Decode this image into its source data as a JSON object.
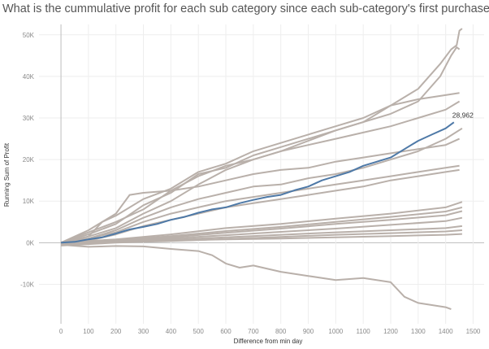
{
  "chart_data": {
    "type": "line",
    "title": "What is the cummulative profit for each sub category since each sub-category's first purchase?",
    "xlabel": "Difference from min day",
    "ylabel": "Running Sum of Profit",
    "xlim": [
      -80,
      1540
    ],
    "ylim": [
      -19500,
      52500
    ],
    "x_ticks": [
      0,
      100,
      200,
      300,
      400,
      500,
      600,
      700,
      800,
      900,
      1000,
      1100,
      1200,
      1300,
      1400,
      1500
    ],
    "y_ticks": [
      -10000,
      0,
      10000,
      20000,
      30000,
      40000,
      50000
    ],
    "y_tick_labels": [
      "-10K",
      "0K",
      "10K",
      "20K",
      "30K",
      "40K",
      "50K"
    ],
    "grid": true,
    "colors": {
      "background_series": "#b9b0aa",
      "highlight_series": "#4e79a7"
    },
    "end_label": "28,962",
    "series": [
      {
        "highlight": false,
        "x": [
          0,
          100,
          200,
          300,
          400,
          500,
          600,
          700,
          800,
          900,
          1000,
          1100,
          1200,
          1300,
          1380,
          1420,
          1440,
          1450,
          1460
        ],
        "values": [
          0,
          2000,
          4500,
          9000,
          12000,
          16500,
          18000,
          21000,
          23000,
          25000,
          27000,
          29000,
          33000,
          37000,
          43000,
          46500,
          47500,
          51000,
          51500
        ]
      },
      {
        "highlight": false,
        "x": [
          0,
          100,
          200,
          300,
          400,
          500,
          600,
          700,
          800,
          900,
          1000,
          1100,
          1200,
          1300,
          1380,
          1420,
          1440,
          1450
        ],
        "values": [
          0,
          1500,
          3500,
          7000,
          10000,
          14000,
          17500,
          20000,
          22000,
          24500,
          27000,
          29000,
          31000,
          34000,
          40000,
          45000,
          47000,
          46500
        ]
      },
      {
        "highlight": false,
        "x": [
          0,
          100,
          150,
          200,
          300,
          400,
          500,
          600,
          700,
          800,
          900,
          1000,
          1100,
          1200,
          1300,
          1400,
          1450
        ],
        "values": [
          0,
          1500,
          5000,
          6500,
          10500,
          13000,
          17000,
          19000,
          22000,
          24000,
          26000,
          28000,
          30000,
          33000,
          34500,
          35500,
          36000
        ]
      },
      {
        "highlight": false,
        "x": [
          0,
          100,
          200,
          300,
          400,
          500,
          600,
          700,
          800,
          900,
          1000,
          1100,
          1200,
          1300,
          1400,
          1450
        ],
        "values": [
          0,
          2500,
          5000,
          8000,
          12500,
          16000,
          18500,
          20000,
          22000,
          23500,
          25000,
          26500,
          28000,
          30000,
          32000,
          34000
        ]
      },
      {
        "highlight": true,
        "x": [
          0,
          50,
          100,
          150,
          200,
          250,
          300,
          350,
          400,
          450,
          500,
          550,
          600,
          650,
          700,
          750,
          800,
          850,
          900,
          950,
          1000,
          1050,
          1100,
          1150,
          1200,
          1250,
          1300,
          1350,
          1400,
          1430
        ],
        "values": [
          0,
          200,
          800,
          1300,
          2200,
          3200,
          3800,
          4500,
          5500,
          6200,
          7200,
          8000,
          8500,
          9500,
          10300,
          11000,
          11500,
          12600,
          13500,
          15000,
          16000,
          17000,
          18500,
          19500,
          20500,
          22500,
          24500,
          26000,
          27500,
          28962
        ]
      },
      {
        "highlight": false,
        "x": [
          0,
          100,
          200,
          300,
          400,
          500,
          600,
          700,
          800,
          900,
          1000,
          1100,
          1200,
          1300,
          1400,
          1460
        ],
        "values": [
          0,
          1000,
          3000,
          6000,
          8500,
          10500,
          12000,
          13500,
          14000,
          15500,
          16500,
          18000,
          20000,
          22000,
          25000,
          27500
        ]
      },
      {
        "highlight": false,
        "x": [
          0,
          100,
          200,
          250,
          300,
          400,
          500,
          600,
          700,
          800,
          900,
          1000,
          1100,
          1200,
          1300,
          1400,
          1450
        ],
        "values": [
          0,
          3000,
          7000,
          11500,
          12000,
          12500,
          13500,
          15000,
          16500,
          17500,
          18000,
          19500,
          20500,
          21500,
          22500,
          23500,
          25000
        ]
      },
      {
        "highlight": false,
        "x": [
          0,
          100,
          200,
          300,
          400,
          500,
          600,
          700,
          800,
          900,
          1000,
          1100,
          1200,
          1300,
          1400,
          1450
        ],
        "values": [
          0,
          1000,
          2500,
          5000,
          7000,
          8500,
          10000,
          11000,
          12000,
          13000,
          14000,
          15000,
          16000,
          17000,
          18000,
          18500
        ]
      },
      {
        "highlight": false,
        "x": [
          0,
          100,
          200,
          300,
          400,
          500,
          600,
          700,
          800,
          900,
          1000,
          1100,
          1200,
          1300,
          1400,
          1450
        ],
        "values": [
          0,
          500,
          2000,
          4000,
          5500,
          7000,
          8500,
          9500,
          10500,
          11500,
          12500,
          13500,
          15000,
          16000,
          17000,
          17500
        ]
      },
      {
        "highlight": false,
        "x": [
          0,
          200,
          400,
          600,
          800,
          1000,
          1200,
          1400,
          1460
        ],
        "values": [
          0,
          800,
          2000,
          3500,
          4500,
          5800,
          7000,
          8500,
          9800
        ]
      },
      {
        "highlight": false,
        "x": [
          0,
          200,
          400,
          600,
          800,
          1000,
          1200,
          1400,
          1460
        ],
        "values": [
          0,
          600,
          1600,
          2800,
          3800,
          5000,
          6200,
          7500,
          8500
        ]
      },
      {
        "highlight": false,
        "x": [
          0,
          200,
          400,
          600,
          800,
          1000,
          1200,
          1400,
          1460
        ],
        "values": [
          0,
          500,
          1300,
          2400,
          3400,
          4500,
          5500,
          6600,
          7600
        ]
      },
      {
        "highlight": false,
        "x": [
          0,
          200,
          400,
          600,
          800,
          1000,
          1200,
          1400,
          1460
        ],
        "values": [
          0,
          400,
          1000,
          1800,
          2600,
          3400,
          4300,
          5200,
          6000
        ]
      },
      {
        "highlight": false,
        "x": [
          0,
          200,
          400,
          600,
          800,
          1000,
          1200,
          1400,
          1460
        ],
        "values": [
          -500,
          200,
          700,
          1300,
          1900,
          2500,
          3000,
          3500,
          4000
        ]
      },
      {
        "highlight": false,
        "x": [
          0,
          200,
          400,
          600,
          800,
          1000,
          1200,
          1400,
          1460
        ],
        "values": [
          -700,
          0,
          400,
          900,
          1400,
          1900,
          2300,
          2700,
          3000
        ]
      },
      {
        "highlight": false,
        "x": [
          0,
          200,
          400,
          600,
          800,
          1000,
          1200,
          1400,
          1460
        ],
        "values": [
          -300,
          100,
          500,
          800,
          1000,
          1300,
          1600,
          1900,
          2100
        ]
      },
      {
        "highlight": false,
        "x": [
          0,
          100,
          200,
          300,
          400,
          500,
          550,
          600,
          650,
          700,
          800,
          900,
          1000,
          1100,
          1200,
          1250,
          1300,
          1350,
          1400,
          1420
        ],
        "values": [
          -500,
          -1000,
          -800,
          -900,
          -1500,
          -2000,
          -3000,
          -5000,
          -6000,
          -5500,
          -7000,
          -8000,
          -9000,
          -8500,
          -9500,
          -13000,
          -14500,
          -15000,
          -15500,
          -16000
        ]
      }
    ]
  }
}
